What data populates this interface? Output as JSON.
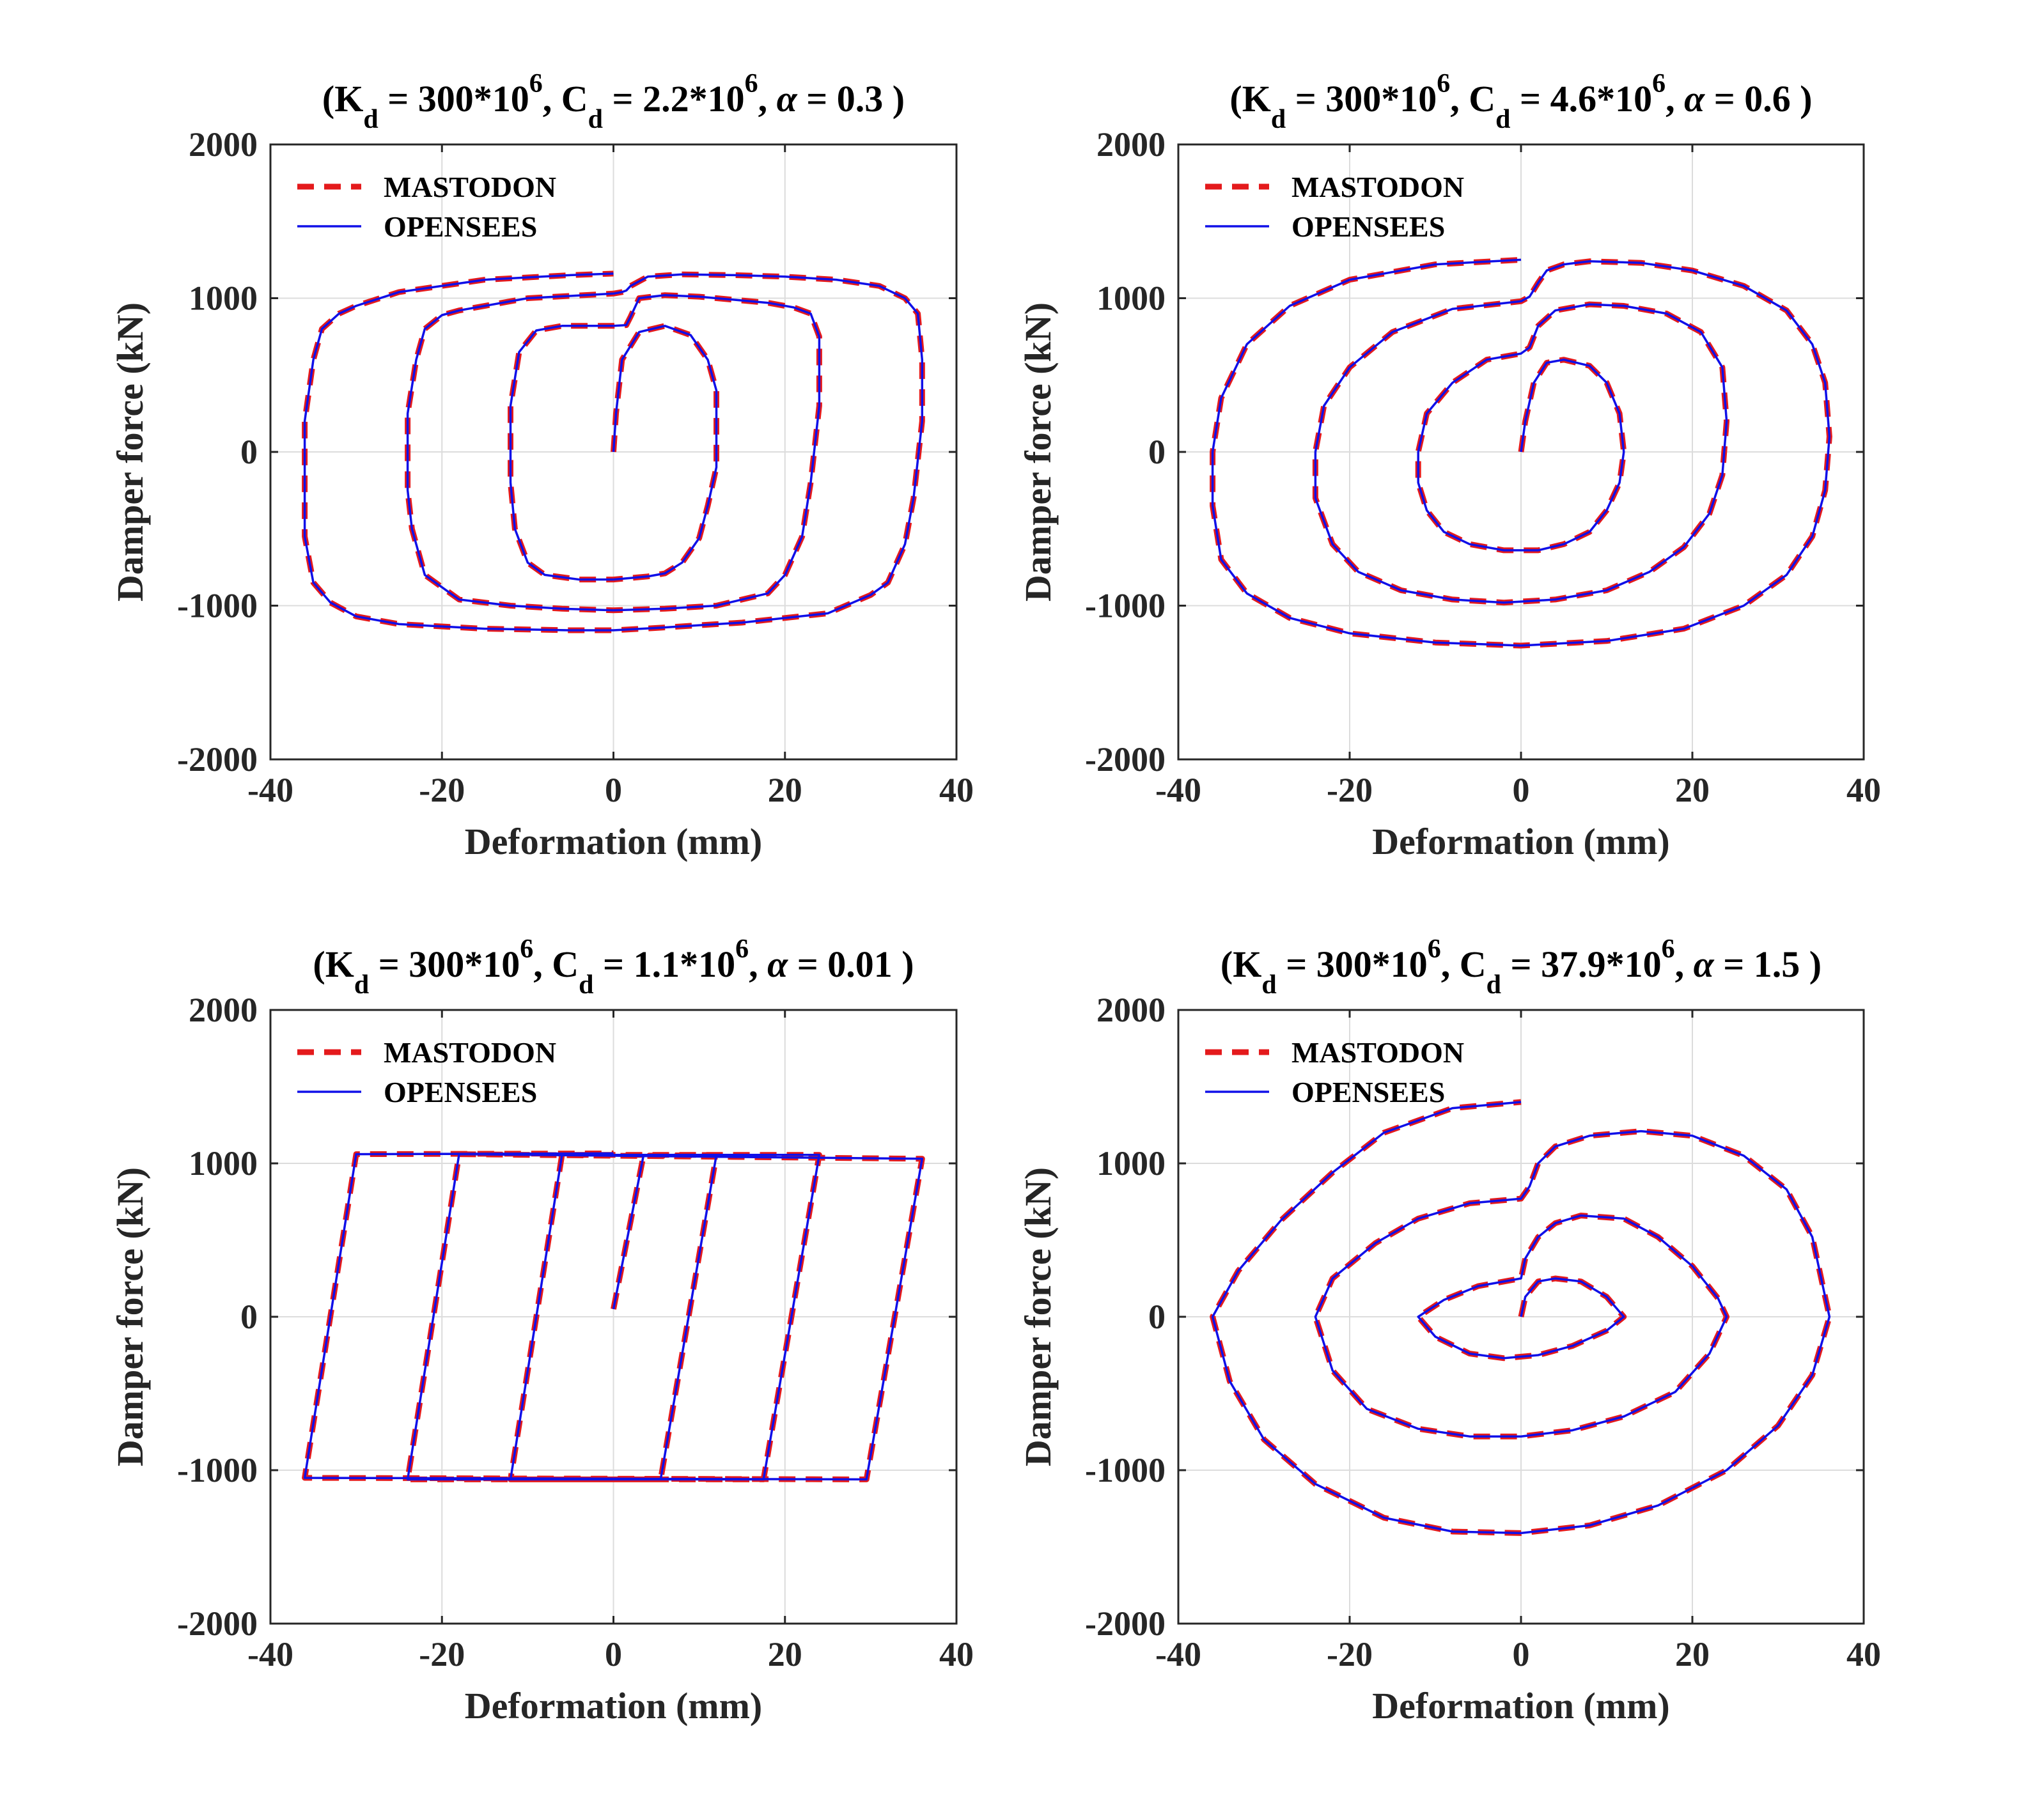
{
  "figure": {
    "panels": [
      {
        "title": {
          "open": "(K",
          "k_sub": "d",
          "k_val": " = 300*10",
          "k_exp": "6",
          "c_pre": ", C",
          "c_sub": "d",
          "c_val": " = 2.2*10",
          "c_exp": "6",
          "alpha_pre": ", ",
          "alpha_sym": "α",
          "alpha_val": " = 0.3 )"
        },
        "xlabel": "Deformation (mm)",
        "ylabel": "Damper force (kN)",
        "legend": [
          "MASTODON",
          "OPENSEES"
        ]
      },
      {
        "title": {
          "open": "(K",
          "k_sub": "d",
          "k_val": " = 300*10",
          "k_exp": "6",
          "c_pre": ", C",
          "c_sub": "d",
          "c_val": " = 4.6*10",
          "c_exp": "6",
          "alpha_pre": ", ",
          "alpha_sym": "α",
          "alpha_val": " = 0.6 )"
        },
        "xlabel": "Deformation (mm)",
        "ylabel": "Damper force (kN)",
        "legend": [
          "MASTODON",
          "OPENSEES"
        ]
      },
      {
        "title": {
          "open": "(K",
          "k_sub": "d",
          "k_val": " = 300*10",
          "k_exp": "6",
          "c_pre": ", C",
          "c_sub": "d",
          "c_val": " = 1.1*10",
          "c_exp": "6",
          "alpha_pre": ", ",
          "alpha_sym": "α",
          "alpha_val": " = 0.01  )"
        },
        "xlabel": "Deformation (mm)",
        "ylabel": "Damper force (kN)",
        "legend": [
          "MASTODON",
          "OPENSEES"
        ]
      },
      {
        "title": {
          "open": "(K",
          "k_sub": "d",
          "k_val": " = 300*10",
          "k_exp": "6",
          "c_pre": ", C",
          "c_sub": "d",
          "c_val": " = 37.9*10",
          "c_exp": "6",
          "alpha_pre": ", ",
          "alpha_sym": "α",
          "alpha_val": " = 1.5 )"
        },
        "xlabel": "Deformation (mm)",
        "ylabel": "Damper force (kN)",
        "legend": [
          "MASTODON",
          "OPENSEES"
        ]
      }
    ]
  },
  "colors": {
    "mastodon": "#e41a1c",
    "opensees": "#1010e8",
    "axis": "#262626",
    "grid": "#dcdcdc"
  },
  "chart_data": [
    {
      "type": "line",
      "xlim": [
        -40,
        40
      ],
      "ylim": [
        -2000,
        2000
      ],
      "xticks": [
        -40,
        -20,
        0,
        20,
        40
      ],
      "yticks": [
        2000,
        1000,
        0,
        -1000,
        -2000
      ],
      "grid": true,
      "legend_position": "top-left",
      "series_names": [
        "MASTODON",
        "OPENSEES"
      ],
      "x": [
        0,
        0.3,
        1,
        3,
        6,
        9,
        11,
        12,
        12,
        11,
        10,
        8,
        6,
        4,
        2,
        0,
        -4,
        -8,
        -10,
        -11.5,
        -12,
        -12,
        -11,
        -9,
        -6,
        -3,
        0,
        1.5,
        2,
        3,
        6,
        10,
        14,
        18,
        21,
        23,
        24,
        24,
        23,
        22,
        20,
        18,
        12,
        6,
        0,
        -6,
        -12,
        -18,
        -22,
        -23.5,
        -24,
        -24,
        -23,
        -22,
        -20,
        -18,
        -10,
        0,
        1,
        1.5,
        2,
        4,
        8,
        14,
        20,
        26,
        31,
        34,
        35.5,
        36,
        36,
        35,
        34,
        32,
        30,
        25,
        15,
        5,
        0,
        -5,
        -15,
        -25,
        -30,
        -33,
        -35,
        -36,
        -36,
        -35,
        -34,
        -32,
        -30,
        -25,
        -15,
        -5,
        0
      ],
      "y": [
        0,
        250,
        600,
        780,
        820,
        760,
        600,
        400,
        -100,
        -350,
        -560,
        -720,
        -790,
        -810,
        -820,
        -830,
        -830,
        -800,
        -720,
        -500,
        -200,
        300,
        650,
        790,
        820,
        820,
        820,
        825,
        880,
        1000,
        1020,
        1010,
        990,
        970,
        940,
        900,
        750,
        300,
        -200,
        -550,
        -800,
        -920,
        -1000,
        -1020,
        -1030,
        -1020,
        -1000,
        -960,
        -800,
        -500,
        -250,
        250,
        600,
        800,
        890,
        920,
        1000,
        1030,
        1040,
        1050,
        1080,
        1140,
        1155,
        1150,
        1140,
        1120,
        1080,
        1000,
        900,
        600,
        200,
        -300,
        -600,
        -850,
        -930,
        -1050,
        -1110,
        -1145,
        -1160,
        -1160,
        -1150,
        -1120,
        -1070,
        -980,
        -850,
        -550,
        200,
        600,
        800,
        900,
        950,
        1040,
        1120,
        1150,
        1160
      ]
    },
    {
      "type": "line",
      "xlim": [
        -40,
        40
      ],
      "ylim": [
        -2000,
        2000
      ],
      "xticks": [
        -40,
        -20,
        0,
        20,
        40
      ],
      "yticks": [
        2000,
        1000,
        0,
        -1000,
        -2000
      ],
      "grid": true,
      "legend_position": "top-left",
      "series_names": [
        "MASTODON",
        "OPENSEES"
      ],
      "x": [
        0,
        0.5,
        1.5,
        3,
        5,
        8,
        10,
        11.5,
        12,
        11.5,
        10,
        8,
        5,
        2,
        -2,
        -6,
        -9,
        -11,
        -12,
        -12,
        -11,
        -8,
        -4,
        0,
        1,
        2,
        4,
        8,
        12,
        17,
        21,
        23.5,
        24,
        23.5,
        22,
        19,
        15,
        10,
        4,
        -2,
        -8,
        -14,
        -19,
        -22,
        -24,
        -24,
        -23,
        -20,
        -15,
        -8,
        0,
        1,
        2,
        3,
        5,
        8,
        14,
        20,
        26,
        31,
        34,
        35.5,
        36,
        35.5,
        34,
        31,
        26,
        19,
        10,
        0,
        -10,
        -20,
        -27,
        -32,
        -35,
        -36,
        -36,
        -35,
        -32,
        -27,
        -20,
        -10,
        0
      ],
      "y": [
        0,
        200,
        450,
        580,
        600,
        560,
        450,
        250,
        0,
        -200,
        -380,
        -520,
        -600,
        -640,
        -640,
        -600,
        -520,
        -380,
        -200,
        0,
        250,
        450,
        600,
        640,
        680,
        820,
        920,
        960,
        950,
        900,
        780,
        550,
        200,
        -150,
        -400,
        -620,
        -780,
        -900,
        -960,
        -980,
        -960,
        -900,
        -780,
        -600,
        -300,
        0,
        300,
        550,
        780,
        930,
        980,
        1010,
        1100,
        1180,
        1220,
        1240,
        1230,
        1180,
        1080,
        920,
        700,
        450,
        100,
        -250,
        -550,
        -800,
        -1000,
        -1150,
        -1230,
        -1260,
        -1240,
        -1180,
        -1080,
        -920,
        -700,
        -350,
        0,
        350,
        700,
        950,
        1120,
        1220,
        1250
      ]
    },
    {
      "type": "line",
      "xlim": [
        -40,
        40
      ],
      "ylim": [
        -2000,
        2000
      ],
      "xticks": [
        -40,
        -20,
        0,
        20,
        40
      ],
      "yticks": [
        2000,
        1000,
        0,
        -1000,
        -2000
      ],
      "grid": true,
      "legend_position": "top-left",
      "series_names": [
        "MASTODON",
        "OPENSEES"
      ],
      "x": [
        0,
        3.5,
        12,
        5.5,
        -12,
        -6,
        24,
        17.5,
        -24,
        -18,
        36,
        29.5,
        -36,
        -30,
        0
      ],
      "y": [
        50,
        1050,
        1055,
        -1060,
        -1060,
        1055,
        1055,
        -1060,
        -1060,
        1060,
        1030,
        -1060,
        -1050,
        1060,
        1065
      ]
    },
    {
      "type": "line",
      "xlim": [
        -40,
        40
      ],
      "ylim": [
        -2000,
        2000
      ],
      "xticks": [
        -40,
        -20,
        0,
        20,
        40
      ],
      "yticks": [
        2000,
        1000,
        0,
        -1000,
        -2000
      ],
      "grid": true,
      "legend_position": "top-left",
      "series_names": [
        "MASTODON",
        "OPENSEES"
      ],
      "x": [
        0,
        0.5,
        2,
        4,
        7,
        10,
        12,
        10,
        6,
        2,
        -2,
        -6,
        -10,
        -12,
        -9,
        -5,
        0,
        0.5,
        2,
        4,
        7,
        12,
        16,
        20,
        23,
        24,
        22,
        18,
        12,
        6,
        0,
        -6,
        -12,
        -18,
        -22,
        -24,
        -22,
        -17,
        -12,
        -6,
        0,
        1,
        2,
        4,
        8,
        14,
        20,
        26,
        31,
        34,
        36,
        34,
        30,
        24,
        16,
        8,
        0,
        -8,
        -16,
        -24,
        -30,
        -34,
        -36,
        -33,
        -28,
        -22,
        -16,
        -8,
        0
      ],
      "y": [
        0,
        130,
        230,
        250,
        230,
        130,
        0,
        -90,
        -190,
        -250,
        -270,
        -240,
        -130,
        0,
        110,
        200,
        250,
        380,
        520,
        610,
        660,
        640,
        520,
        330,
        120,
        0,
        -240,
        -490,
        -650,
        -740,
        -780,
        -780,
        -730,
        -600,
        -350,
        0,
        250,
        480,
        640,
        740,
        770,
        850,
        1000,
        1110,
        1180,
        1210,
        1180,
        1050,
        830,
        520,
        0,
        -380,
        -710,
        -1000,
        -1230,
        -1360,
        -1410,
        -1400,
        -1310,
        -1090,
        -800,
        -420,
        0,
        300,
        630,
        940,
        1200,
        1360,
        1400
      ]
    }
  ]
}
